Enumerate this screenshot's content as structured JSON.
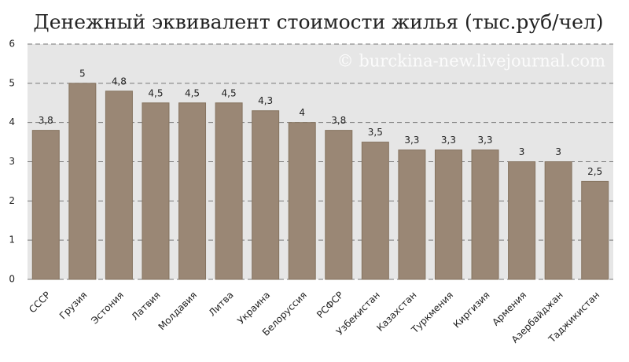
{
  "chart_data": {
    "type": "bar",
    "title": "Денежный эквивалент стоимости жилья (тыс.руб/чел)",
    "watermark": "© burckina-new.livejournal.com",
    "categories": [
      "СССР",
      "Грузия",
      "Эстония",
      "Латвия",
      "Молдавия",
      "Литва",
      "Украина",
      "Белоруссия",
      "РСФСР",
      "Узбекистан",
      "Казахстан",
      "Туркмения",
      "Киргизия",
      "Армения",
      "Азербайджан",
      "Таджикистан"
    ],
    "values": [
      3.8,
      5,
      4.8,
      4.5,
      4.5,
      4.5,
      4.3,
      4,
      3.8,
      3.5,
      3.3,
      3.3,
      3.3,
      3,
      3,
      2.5
    ],
    "value_labels": [
      "3,8",
      "5",
      "4,8",
      "4,5",
      "4,5",
      "4,5",
      "4,3",
      "4",
      "3,8",
      "3,5",
      "3,3",
      "3,3",
      "3,3",
      "3",
      "3",
      "2,5"
    ],
    "color": "#9a8775",
    "ylim": [
      0,
      6
    ],
    "yticks": [
      0,
      1,
      2,
      3,
      4,
      5,
      6
    ],
    "grid": true
  }
}
